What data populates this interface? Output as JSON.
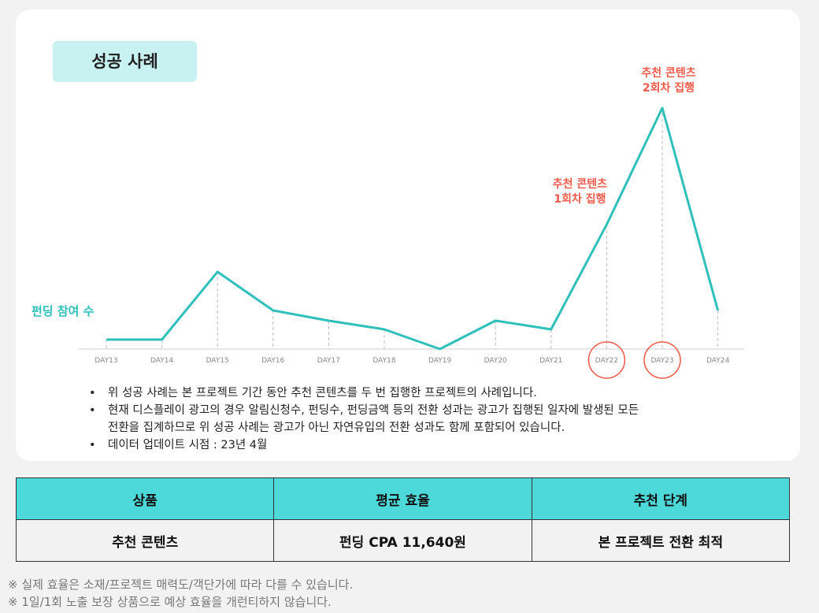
{
  "badge": "성공 사례",
  "chart_data": {
    "type": "line",
    "categories": [
      "DAY13",
      "DAY14",
      "DAY15",
      "DAY16",
      "DAY17",
      "DAY18",
      "DAY19",
      "DAY20",
      "DAY21",
      "DAY22",
      "DAY23",
      "DAY24"
    ],
    "series": [
      {
        "name": "펀딩 참여 수",
        "color": "#2fc0bc",
        "values": [
          12,
          12,
          98,
          49,
          36,
          25,
          0,
          36,
          25,
          158,
          306,
          49
        ]
      }
    ],
    "ylim": [
      0,
      306
    ],
    "annotations": [
      {
        "x": "DAY22",
        "lines": [
          "추천 콘텐츠",
          "1회차 집행"
        ],
        "color": "#f05a4a"
      },
      {
        "x": "DAY23",
        "lines": [
          "추천 콘텐츠",
          "2회차 집행"
        ],
        "color": "#f05a4a"
      }
    ]
  },
  "bullets": [
    [
      "위 성공 사례는 본 프로젝트 기간 동안 추천 콘텐츠를 두 번 집행한 프로젝트의 사례입니다."
    ],
    [
      "현재 디스플레이 광고의 경우 알림신청수, 펀딩수, 펀딩금액 등의 전환 성과는 광고가 집행된 일자에 발생된 모든",
      "전환을 집계하므로 위 성공 사례는 광고가 아닌 자연유입의 전환 성과도 함께 포함되어 있습니다."
    ],
    [
      "데이터 업데이트 시점 : 23년 4월"
    ]
  ],
  "table": {
    "header": [
      "상품",
      "평균 효율",
      "추천 단계"
    ],
    "rows": [
      [
        "추천 콘텐츠",
        "펀딩 CPA 11,640원",
        "본 프로젝트 전환 최적"
      ]
    ]
  },
  "footnotes": [
    "※ 실제 효율은 소재/프로젝트 매력도/객단가에 따라 다를 수 있습니다.",
    "※ 1일/1회 노출 보장 상품으로 예상 효율을 개런티하지 않습니다."
  ]
}
